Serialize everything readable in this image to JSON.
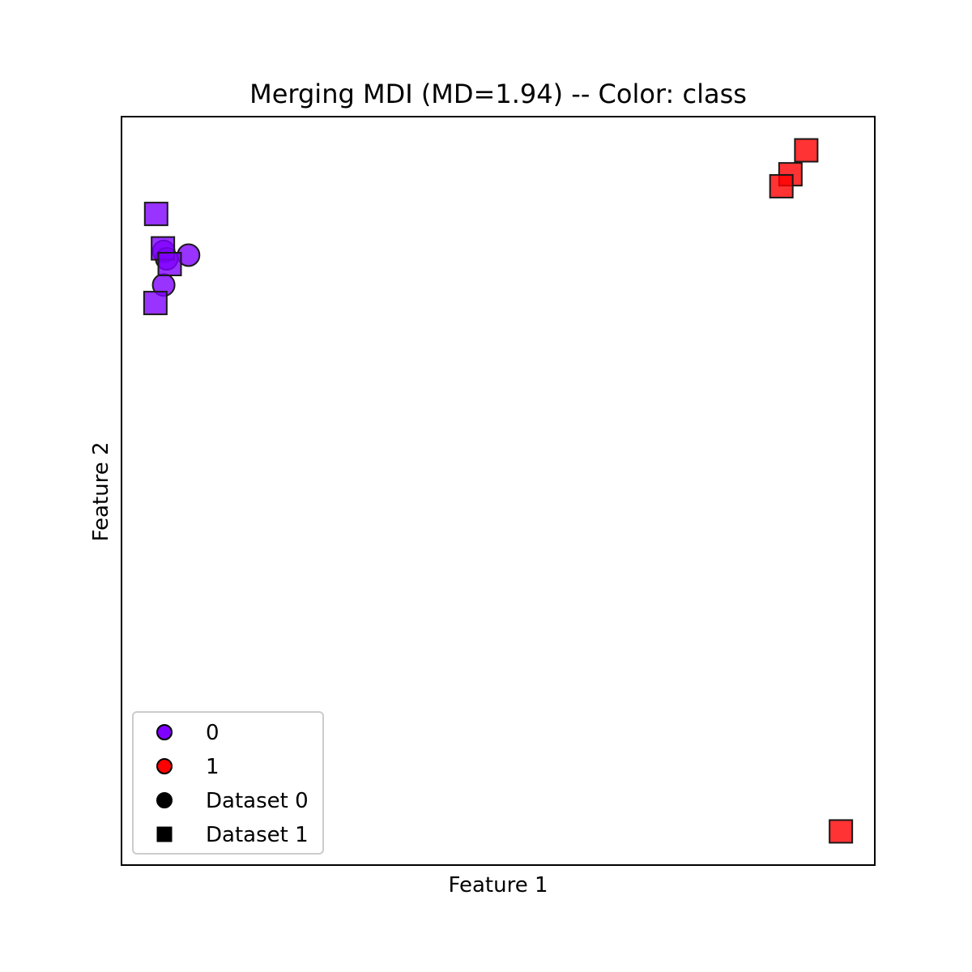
{
  "chart_data": {
    "type": "scatter",
    "title": "Merging MDI (MD=1.94) -- Color: class",
    "xlabel": "Feature 1",
    "ylabel": "Feature 2",
    "xlim": [
      0,
      100
    ],
    "ylim": [
      0,
      100
    ],
    "xticks_shown": false,
    "yticks_shown": false,
    "grid": false,
    "legend_position": "lower-left",
    "class_colors": {
      "0": "#8000ff",
      "1": "#ff0000"
    },
    "marker_by_dataset": {
      "Dataset 0": "circle",
      "Dataset 1": "square"
    },
    "legend": [
      {
        "label": "0",
        "marker": "circle",
        "color": "#8000ff"
      },
      {
        "label": "1",
        "marker": "circle",
        "color": "#ff0000"
      },
      {
        "label": "Dataset 0",
        "marker": "circle",
        "color": "#000000"
      },
      {
        "label": "Dataset 1",
        "marker": "square",
        "color": "#000000"
      }
    ],
    "series": [
      {
        "dataset": "Dataset 0",
        "class": "0",
        "marker": "circle",
        "x": [
          5.6,
          6.0,
          8.9,
          5.6
        ],
        "y": [
          82.0,
          81.0,
          81.5,
          77.5
        ]
      },
      {
        "dataset": "Dataset 1",
        "class": "0",
        "marker": "square",
        "x": [
          4.6,
          5.5,
          6.4,
          4.5
        ],
        "y": [
          87.0,
          82.4,
          80.3,
          75.1
        ]
      },
      {
        "dataset": "Dataset 1",
        "class": "1",
        "marker": "square",
        "x": [
          90.9,
          88.8,
          87.6,
          95.5
        ],
        "y": [
          95.5,
          92.3,
          90.7,
          4.5
        ]
      }
    ]
  }
}
